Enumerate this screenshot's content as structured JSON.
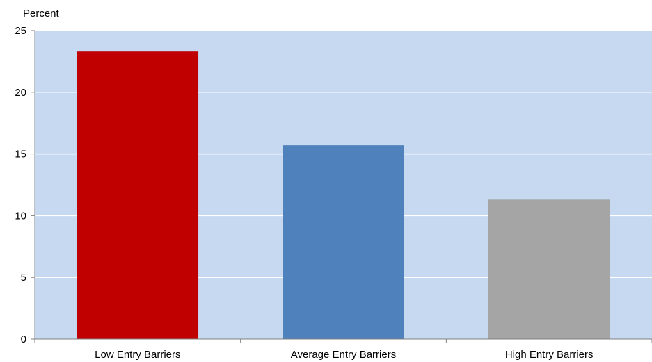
{
  "chart_data": {
    "type": "bar",
    "ylabel": "Percent",
    "ylim": [
      0,
      25
    ],
    "yticks": [
      0,
      5,
      10,
      15,
      20,
      25
    ],
    "grid": true,
    "categories": [
      "Low Entry Barriers",
      "Average Entry Barriers",
      "High Entry Barriers"
    ],
    "values": [
      23.3,
      15.7,
      11.3
    ],
    "colors": [
      "#C00000",
      "#4F81BD",
      "#A5A5A5"
    ],
    "plot_background": "#C6D9F1",
    "gridline_color": "#FFFFFF"
  }
}
